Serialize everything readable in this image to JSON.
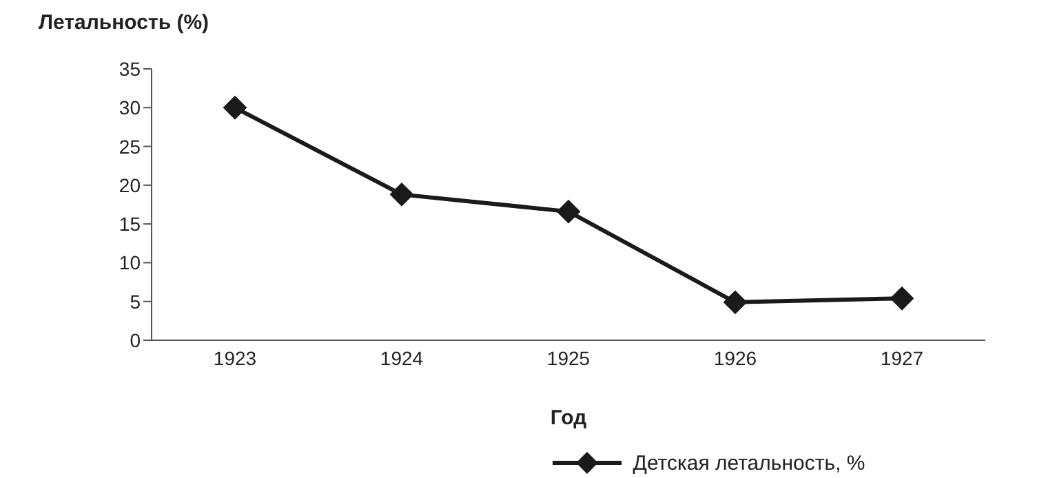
{
  "chart_data": {
    "type": "line",
    "ylabel": "Летальность (%)",
    "xlabel": "Год",
    "categories": [
      "1923",
      "1924",
      "1925",
      "1926",
      "1927"
    ],
    "series": [
      {
        "name": "Детская летальность, %",
        "color": "#1a1a1a",
        "values": [
          30,
          18.8,
          16.6,
          4.9,
          5.4
        ]
      }
    ],
    "ylim": [
      0,
      35
    ],
    "yticks": [
      0,
      5,
      10,
      15,
      20,
      25,
      30,
      35
    ],
    "grid": false,
    "legend": "bottom",
    "marker": "diamond",
    "line_style": "solid"
  }
}
